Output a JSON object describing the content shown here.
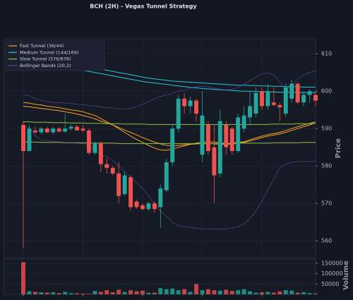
{
  "chart_data": {
    "type": "candlestick",
    "title": "BCH (2H) - Vegas Tunnel Strategy",
    "ylabel": "Price",
    "categories": [
      null,
      null,
      null,
      null,
      null,
      null,
      null,
      null,
      null,
      null,
      null,
      null,
      null,
      null,
      null,
      null,
      null,
      null,
      null,
      null,
      null,
      null,
      null,
      null,
      null,
      null,
      null,
      null,
      null,
      null,
      null,
      null,
      null,
      null,
      null,
      null,
      null,
      null,
      null,
      null,
      null,
      null,
      null,
      null,
      null,
      null,
      null,
      null,
      null,
      null
    ],
    "open": [
      591,
      584,
      589.5,
      589,
      590,
      589,
      590,
      589.2,
      590,
      590.5,
      590,
      589.5,
      583.5,
      586,
      580.5,
      579.5,
      578,
      572.5,
      577,
      570.5,
      569.5,
      568.5,
      570,
      569,
      573.5,
      581,
      590,
      598,
      596,
      597.5,
      583,
      591,
      585,
      578,
      591,
      590,
      584,
      590,
      593,
      594,
      600,
      596,
      597,
      596.3,
      594,
      598,
      602,
      597,
      599,
      599
    ],
    "high": [
      592,
      591,
      590.5,
      590.5,
      590.5,
      590.5,
      590.5,
      594,
      591,
      591,
      591,
      590,
      586.5,
      586.5,
      582,
      580,
      581,
      578.5,
      577.5,
      571,
      570,
      570.5,
      570.5,
      575,
      582,
      591,
      599,
      599.5,
      598.5,
      598,
      600,
      592,
      591,
      595,
      592,
      590.5,
      594,
      596,
      600,
      601,
      601,
      602,
      601,
      597,
      602,
      603,
      602.5,
      600,
      600.5,
      600
    ],
    "low": [
      558,
      584,
      588.5,
      588.5,
      588.8,
      588.5,
      589,
      589,
      589.5,
      589.5,
      589,
      583,
      583,
      578.5,
      578,
      577.5,
      570,
      572,
      568,
      568.5,
      568,
      568,
      567.5,
      563.5,
      573,
      580,
      589,
      594,
      594,
      592,
      581,
      583,
      570,
      577,
      583,
      583,
      583.5,
      589,
      591,
      593,
      595,
      595,
      596,
      592,
      593,
      597,
      596.5,
      596,
      597,
      596
    ],
    "close": [
      584,
      590,
      589,
      590,
      589,
      590,
      589.2,
      590,
      590.5,
      589.5,
      589.5,
      583.5,
      586,
      580.5,
      579.5,
      578,
      572,
      577.5,
      569,
      569,
      568.5,
      570,
      568.5,
      574,
      581,
      590,
      598,
      596,
      597.5,
      594,
      593.5,
      584,
      577.5,
      592,
      585,
      584,
      593,
      593.5,
      596,
      599.5,
      596,
      600,
      596.3,
      595.7,
      601,
      602,
      597,
      599,
      600,
      597.5
    ],
    "up_color": "#26a69a",
    "down_color": "#ef5350",
    "ylim": [
      555.5,
      614
    ],
    "yticks": [
      560,
      570,
      580,
      590,
      600,
      610
    ],
    "grid": true,
    "legend": "upper left",
    "overlays": [
      {
        "name": "Fast Tunnel (36/44)",
        "color": "#f5a623",
        "dashed": false,
        "lines": [
          [
            597,
            596.8,
            596.5,
            596.3,
            596,
            595.8,
            595.6,
            595.3,
            595,
            594.8,
            594.5,
            594,
            593.5,
            592.7,
            591.8,
            591,
            590,
            589,
            588,
            587.1,
            586.3,
            585.5,
            584.8,
            584.3,
            584.2,
            584.5,
            585,
            585.4,
            585.8,
            586.1,
            586.3,
            586.5,
            586.4,
            586.2,
            586,
            586.1,
            586.3,
            586.5,
            587,
            587.5,
            588,
            588.4,
            588.7,
            589,
            589.5,
            590,
            590.5,
            591,
            591.4,
            591.8
          ],
          [
            596,
            595.8,
            595.6,
            595.4,
            595.2,
            595,
            594.8,
            594.5,
            594.2,
            593.9,
            593.5,
            593.1,
            592.6,
            592,
            591.5,
            591,
            590.3,
            589.6,
            589,
            588.3,
            587.6,
            587,
            586.4,
            585.9,
            585.5,
            585.4,
            585.5,
            585.7,
            585.8,
            585.9,
            586,
            586,
            585.9,
            585.8,
            585.8,
            585.9,
            586.1,
            586.3,
            586.7,
            587.1,
            587.6,
            588,
            588.3,
            588.6,
            589,
            589.5,
            590,
            590.5,
            591,
            591.5
          ]
        ]
      },
      {
        "name": "Medium Tunnel (144/169)",
        "color": "#26c6da",
        "dashed": false,
        "lines": [
          [
            609.5,
            609.3,
            609.1,
            608.9,
            608.6,
            608.3,
            608,
            607.7,
            607.4,
            607.1,
            606.8,
            606.5,
            606.2,
            605.9,
            605.6,
            605.3,
            605,
            604.7,
            604.4,
            604.1,
            603.8,
            603.5,
            603.3,
            603.1,
            602.9,
            602.7,
            602.6,
            602.5,
            602.4,
            602.3,
            602.2,
            602.1,
            602,
            601.9,
            601.8,
            601.7,
            601.6,
            601.6,
            601.5,
            601.5,
            601.4,
            601.4,
            601.3,
            601.3,
            601.2,
            601.2,
            601.2,
            601.1,
            601.1,
            601.1
          ],
          [
            608.3,
            608.1,
            607.9,
            607.7,
            607.4,
            607.1,
            606.8,
            606.5,
            606.2,
            605.9,
            605.6,
            605.3,
            605,
            604.7,
            604.4,
            604.1,
            603.8,
            603.5,
            603.2,
            602.9,
            602.6,
            602.4,
            602.2,
            602,
            601.8,
            601.6,
            601.4,
            601.2,
            601,
            600.9,
            600.7,
            600.6,
            600.5,
            600.4,
            600.3,
            600.2,
            600.1,
            600,
            600,
            599.9,
            599.9,
            599.8,
            599.8,
            599.7,
            599.7,
            599.7,
            599.6,
            599.6,
            599.6,
            599.6
          ]
        ]
      },
      {
        "name": "Slow Tunnel (576/676)",
        "color": "#8bc34a",
        "dashed": false,
        "lines": [
          [
            591.8,
            591.8,
            591.7,
            591.7,
            591.7,
            591.6,
            591.6,
            591.6,
            591.5,
            591.5,
            591.5,
            591.4,
            591.4,
            591.4,
            591.3,
            591.3,
            591.3,
            591.2,
            591.2,
            591.2,
            591.2,
            591.1,
            591.1,
            591.1,
            591.1,
            591.1,
            591.1,
            591.1,
            591.1,
            591.1,
            591.1,
            591.1,
            591.1,
            591.1,
            591.1,
            591.1,
            591.1,
            591.1,
            591.1,
            591.1,
            591.1,
            591.1,
            591.2,
            591.2,
            591.2,
            591.2,
            591.3,
            591.3,
            591.3,
            591.4
          ],
          [
            586.4,
            586.4,
            586.4,
            586.3,
            586.3,
            586.3,
            586.3,
            586.2,
            586.2,
            586.2,
            586.2,
            586.1,
            586.1,
            586.1,
            586.1,
            586.1,
            586,
            586,
            586,
            586,
            586,
            586,
            586,
            586,
            586,
            586,
            586,
            586,
            586,
            586,
            586,
            586,
            586,
            586,
            586,
            586,
            586.1,
            586.1,
            586.1,
            586.1,
            586.1,
            586.1,
            586.2,
            586.2,
            586.2,
            586.2,
            586.2,
            586.3,
            586.3,
            586.3
          ]
        ]
      },
      {
        "name": "Bollinger Bands (20,2)",
        "color": "#7e57c2",
        "dashed": true,
        "lines": [
          [
            599,
            598.8,
            598,
            597.5,
            597.2,
            597,
            596.9,
            596.8,
            596.7,
            596.5,
            596.4,
            596.2,
            596,
            595.8,
            595.6,
            595.5,
            595.3,
            595.2,
            595.4,
            595.8,
            596.5,
            597.2,
            598,
            598.6,
            599,
            599.4,
            600,
            600.3,
            600.8,
            601.2,
            601.3,
            601.2,
            600.8,
            600.5,
            600.3,
            600.5,
            601,
            601.8,
            602.8,
            603.8,
            604.6,
            604.9,
            604.3,
            602.5,
            600.5,
            601.5,
            603.2,
            604.3,
            605,
            605.5
          ],
          [
            590.5,
            590.3,
            588,
            587,
            586.8,
            586.6,
            586.5,
            586.3,
            586.2,
            586.1,
            586,
            585.5,
            584,
            583,
            582.5,
            581.5,
            580,
            578.5,
            577,
            575.5,
            574,
            572,
            570,
            568,
            566.5,
            565,
            564,
            563.8,
            563.6,
            563.3,
            563.2,
            563.1,
            563.1,
            563.1,
            563.2,
            563.4,
            563.8,
            564.5,
            566,
            568,
            570.5,
            573.5,
            576.5,
            579.5,
            580.5,
            581,
            581.2,
            581.2,
            581.2,
            581.3
          ]
        ]
      }
    ],
    "volume": {
      "ylabel": "Volume",
      "values": [
        155000,
        15000,
        12000,
        10000,
        8000,
        10000,
        6000,
        12000,
        6000,
        5000,
        4000,
        3000,
        16000,
        12000,
        20000,
        10000,
        22000,
        12000,
        20000,
        15000,
        18000,
        8000,
        8000,
        30000,
        25000,
        28000,
        20000,
        25000,
        12000,
        50000,
        20000,
        25000,
        20000,
        18000,
        22000,
        16000,
        20000,
        25000,
        15000,
        8000,
        10000,
        12000,
        8000,
        14000,
        20000,
        18000,
        8000,
        10000,
        6000,
        4000
      ],
      "ylim": [
        0,
        170000
      ],
      "yticks": [
        50000,
        100000,
        150000
      ]
    }
  }
}
